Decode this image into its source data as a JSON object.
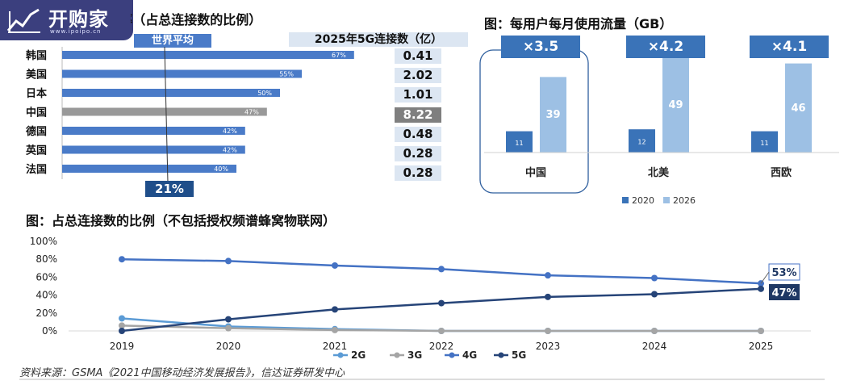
{
  "logo": {
    "text": "开购家",
    "url_text": "www.ipoipo.cn"
  },
  "panel1": {
    "title": "图：5G渗透率（占总连接数的比例）",
    "world_avg_label": "世界平均",
    "world_avg_value": "21%",
    "values_header": "2025年5G连接数（亿）"
  },
  "panel2": {
    "title": "图：每用户每月使用流量（GB）",
    "regions": [
      "中国",
      "北美",
      "西欧"
    ],
    "multipliers": [
      "×3.5",
      "×4.2",
      "×4.1"
    ],
    "legend": [
      "2020",
      "2026"
    ]
  },
  "panel3": {
    "title": "图：占总连接数的比例（不包括授权频谱蜂窝物联网）",
    "end_labels": [
      "53%",
      "47%"
    ]
  },
  "source": "资料来源：GSMA《2021中国移动经济发展报告》，信达证券研发中心",
  "colors": {
    "bar_blue": "#4a7bc8",
    "bar_gray": "#999999",
    "light_blue": "#9dc0e4",
    "dark_blue": "#3a73b8",
    "line_2g": "#5b9bd5",
    "line_3g": "#a5a5a5",
    "line_4g": "#4472c4",
    "line_5g": "#264478"
  },
  "chart_data": [
    {
      "type": "bar",
      "orientation": "horizontal",
      "title": "图：5G渗透率（占总连接数的比例）",
      "categories": [
        "韩国",
        "美国",
        "日本",
        "中国",
        "德国",
        "英国",
        "法国"
      ],
      "values": [
        67,
        55,
        50,
        47,
        42,
        42,
        40
      ],
      "value_labels": [
        "67%",
        "55%",
        "50%",
        "47%",
        "42%",
        "42%",
        "40%"
      ],
      "highlight": "中国",
      "reference_line": {
        "label": "世界平均",
        "value": 21,
        "value_label": "21%"
      },
      "side_table": {
        "header": "2025年5G连接数（亿）",
        "values": [
          "0.41",
          "2.02",
          "1.01",
          "8.22",
          "0.48",
          "0.28",
          "0.28"
        ]
      }
    },
    {
      "type": "bar",
      "title": "图：每用户每月使用流量（GB）",
      "categories": [
        "中国",
        "北美",
        "西欧"
      ],
      "series": [
        {
          "name": "2020",
          "values": [
            11,
            12,
            11
          ]
        },
        {
          "name": "2026",
          "values": [
            39,
            49,
            46
          ]
        }
      ],
      "annotations": [
        "×3.5",
        "×4.2",
        "×4.1"
      ],
      "legend": "bottom"
    },
    {
      "type": "line",
      "title": "图：占总连接数的比例（不包括授权频谱蜂窝物联网）",
      "x": [
        "2019",
        "2020",
        "2021",
        "2022",
        "2023",
        "2024",
        "2025"
      ],
      "yticks": [
        "0%",
        "20%",
        "40%",
        "60%",
        "80%",
        "100%"
      ],
      "ylim": [
        0,
        100
      ],
      "series": [
        {
          "name": "2G",
          "values": [
            14,
            5,
            2,
            0,
            0,
            0,
            0
          ]
        },
        {
          "name": "3G",
          "values": [
            6,
            3,
            1,
            0,
            0,
            0,
            0
          ]
        },
        {
          "name": "4G",
          "values": [
            80,
            78,
            73,
            69,
            62,
            59,
            53
          ]
        },
        {
          "name": "5G",
          "values": [
            0,
            13,
            24,
            31,
            38,
            41,
            47
          ]
        }
      ],
      "end_labels": [
        "53%",
        "47%"
      ],
      "legend": "bottom"
    }
  ]
}
